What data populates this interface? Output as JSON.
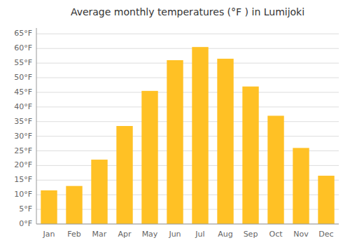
{
  "chart_data": {
    "type": "bar",
    "title": "Average monthly temperatures (°F ) in Lumijoki",
    "categories": [
      "Jan",
      "Feb",
      "Mar",
      "Apr",
      "May",
      "Jun",
      "Jul",
      "Aug",
      "Sep",
      "Oct",
      "Nov",
      "Dec"
    ],
    "values": [
      11.5,
      13.0,
      22.0,
      33.5,
      45.5,
      56.0,
      60.5,
      56.5,
      47.0,
      37.0,
      26.0,
      16.5
    ],
    "color": "#FFC125",
    "ylim": [
      0,
      67
    ],
    "yticks": [
      {
        "value": 0,
        "label": "0°F"
      },
      {
        "value": 5,
        "label": "5°F"
      },
      {
        "value": 10,
        "label": "10°F"
      },
      {
        "value": 15,
        "label": "15°F"
      },
      {
        "value": 20,
        "label": "20°F"
      },
      {
        "value": 25,
        "label": "25°F"
      },
      {
        "value": 30,
        "label": "30°F"
      },
      {
        "value": 35,
        "label": "35°F"
      },
      {
        "value": 40,
        "label": "40°F"
      },
      {
        "value": 45,
        "label": "45°F"
      },
      {
        "value": 50,
        "label": "50°F"
      },
      {
        "value": 55,
        "label": "55°F"
      },
      {
        "value": 60,
        "label": "60°F"
      },
      {
        "value": 65,
        "label": "65°F"
      }
    ],
    "grid": true
  }
}
